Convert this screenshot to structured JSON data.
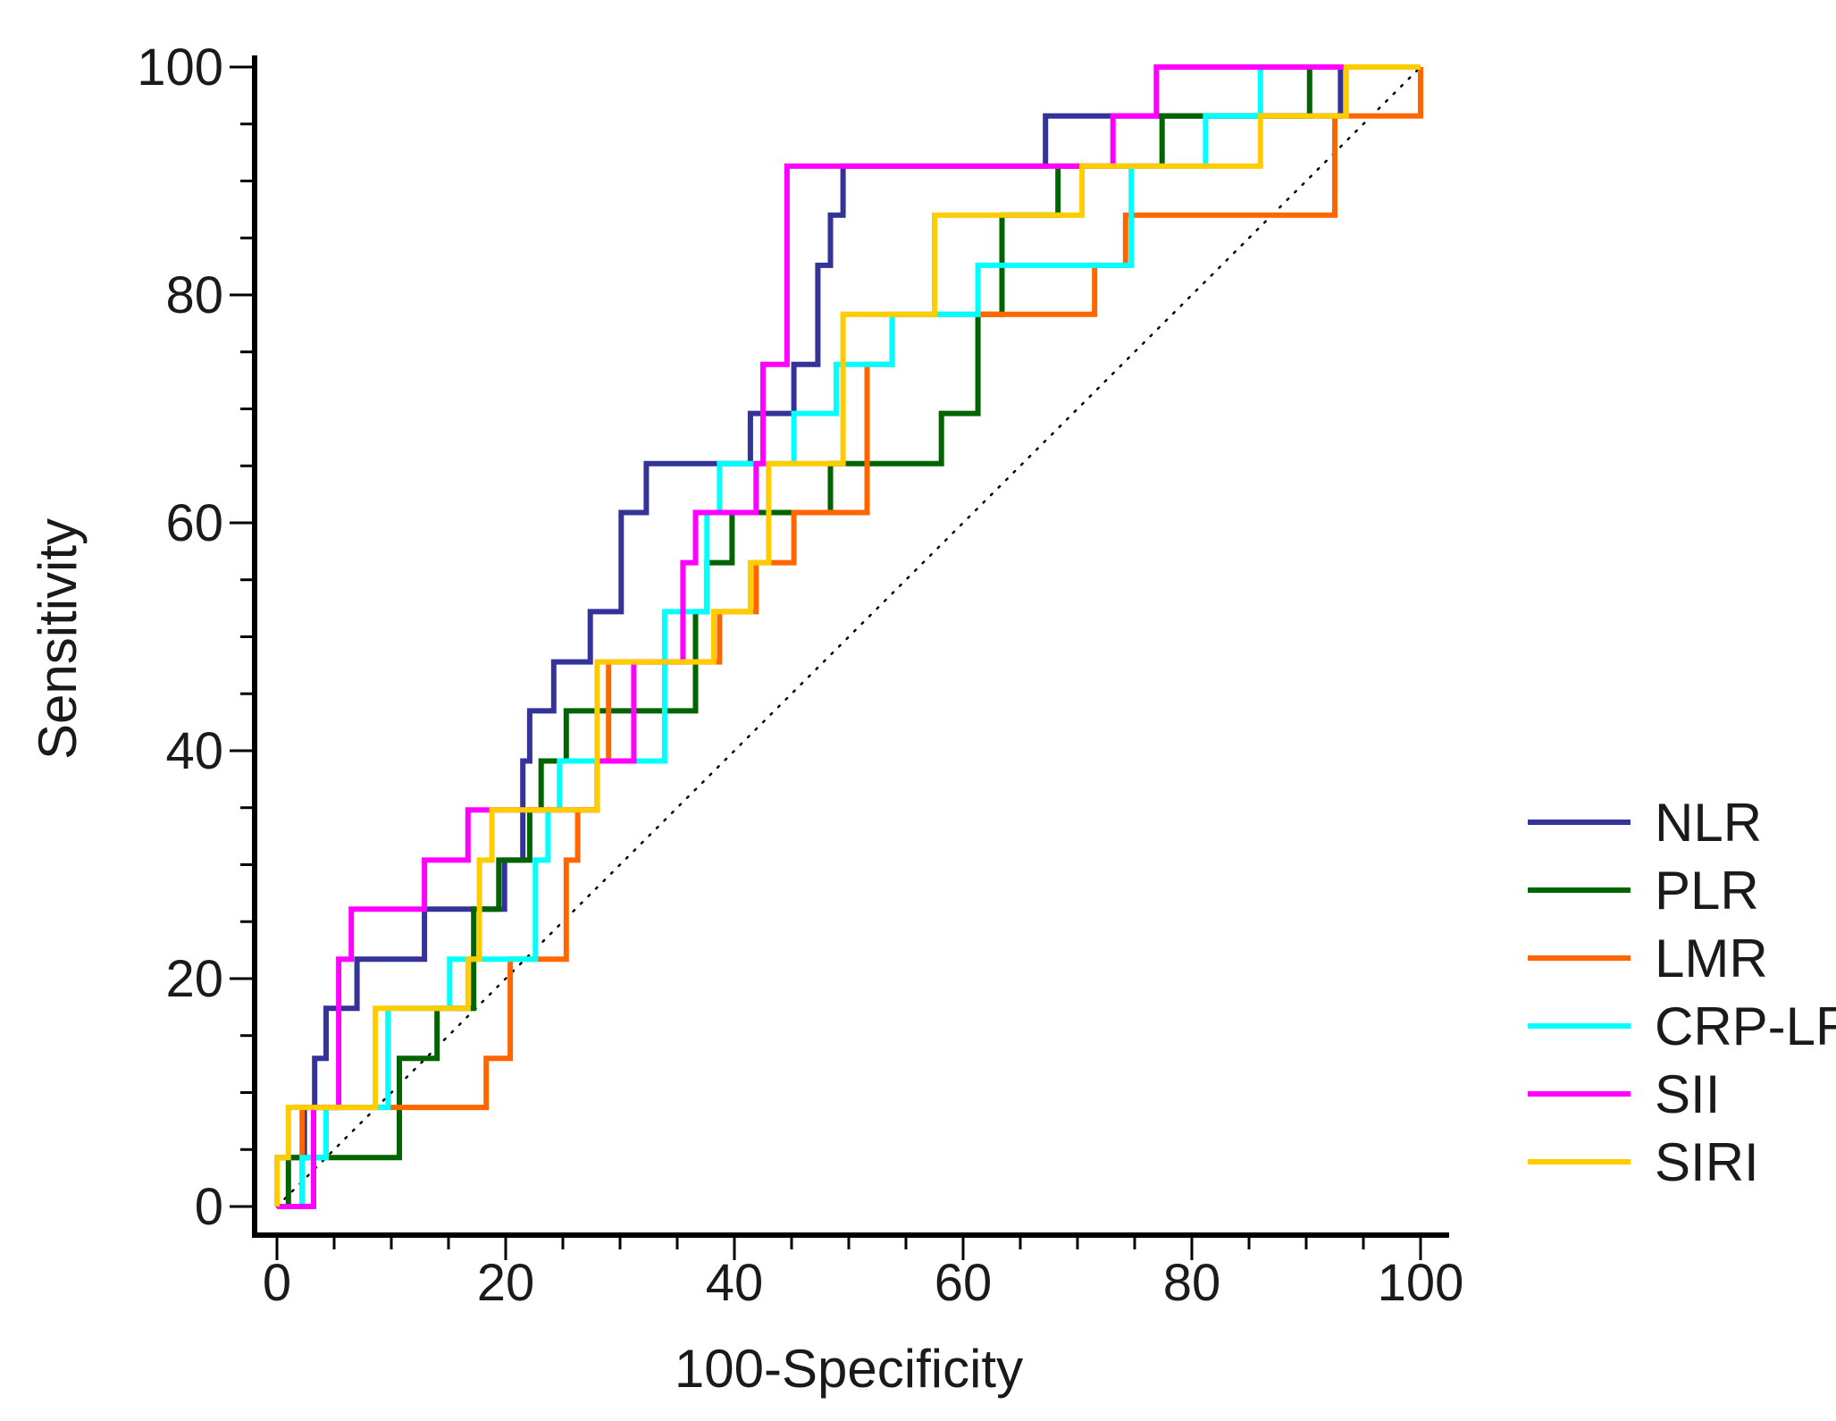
{
  "chart_data": {
    "type": "line",
    "title": "",
    "xlabel": "100-Specificity",
    "ylabel": "Sensitivity",
    "xlim": [
      0,
      100
    ],
    "ylim": [
      0,
      100
    ],
    "x_ticks": [
      0,
      20,
      40,
      60,
      80,
      100
    ],
    "y_ticks": [
      0,
      20,
      40,
      60,
      80,
      100
    ],
    "x_tick_labels": [
      "0",
      "20",
      "40",
      "60",
      "80",
      "100"
    ],
    "y_tick_labels": [
      "0",
      "20",
      "40",
      "60",
      "80",
      "100"
    ],
    "grid": false,
    "legend_position": "right",
    "diagonal_reference": true,
    "series": [
      {
        "name": "NLR",
        "color": "#333399",
        "points": [
          [
            0,
            0
          ],
          [
            0,
            4.3
          ],
          [
            2.4,
            4.3
          ],
          [
            2.4,
            8.7
          ],
          [
            3.3,
            8.7
          ],
          [
            3.3,
            13
          ],
          [
            4.3,
            13
          ],
          [
            4.3,
            17.4
          ],
          [
            7,
            17.4
          ],
          [
            7,
            21.7
          ],
          [
            12.9,
            21.7
          ],
          [
            12.9,
            26.1
          ],
          [
            19.9,
            26.1
          ],
          [
            19.9,
            30.4
          ],
          [
            21.5,
            30.4
          ],
          [
            21.5,
            39.1
          ],
          [
            22.1,
            39.1
          ],
          [
            22.1,
            43.5
          ],
          [
            24.2,
            43.5
          ],
          [
            24.2,
            47.8
          ],
          [
            27.4,
            47.8
          ],
          [
            27.4,
            52.2
          ],
          [
            30.1,
            52.2
          ],
          [
            30.1,
            60.9
          ],
          [
            32.3,
            60.9
          ],
          [
            32.3,
            65.2
          ],
          [
            41.4,
            65.2
          ],
          [
            41.4,
            69.6
          ],
          [
            45.2,
            69.6
          ],
          [
            45.2,
            73.9
          ],
          [
            47.3,
            73.9
          ],
          [
            47.3,
            82.6
          ],
          [
            48.4,
            82.6
          ],
          [
            48.4,
            87
          ],
          [
            49.5,
            87
          ],
          [
            49.5,
            91.3
          ],
          [
            67.2,
            91.3
          ],
          [
            67.2,
            95.7
          ],
          [
            93,
            95.7
          ],
          [
            93,
            100
          ],
          [
            100,
            100
          ]
        ]
      },
      {
        "name": "PLR",
        "color": "#006400",
        "points": [
          [
            0,
            0
          ],
          [
            1,
            0
          ],
          [
            1,
            4.3
          ],
          [
            10.7,
            4.3
          ],
          [
            10.7,
            13
          ],
          [
            14,
            13
          ],
          [
            14,
            17.4
          ],
          [
            17.2,
            17.4
          ],
          [
            17.2,
            26.1
          ],
          [
            19.4,
            26.1
          ],
          [
            19.4,
            30.4
          ],
          [
            22.1,
            30.4
          ],
          [
            22.1,
            34.8
          ],
          [
            23.1,
            34.8
          ],
          [
            23.1,
            39.1
          ],
          [
            25.3,
            39.1
          ],
          [
            25.3,
            43.5
          ],
          [
            36.6,
            43.5
          ],
          [
            36.6,
            52.2
          ],
          [
            37.6,
            52.2
          ],
          [
            37.6,
            56.5
          ],
          [
            39.8,
            56.5
          ],
          [
            39.8,
            60.9
          ],
          [
            48.4,
            60.9
          ],
          [
            48.4,
            65.2
          ],
          [
            58.1,
            65.2
          ],
          [
            58.1,
            69.6
          ],
          [
            61.3,
            69.6
          ],
          [
            61.3,
            78.3
          ],
          [
            63.4,
            78.3
          ],
          [
            63.4,
            87
          ],
          [
            68.3,
            87
          ],
          [
            68.3,
            91.3
          ],
          [
            77.4,
            91.3
          ],
          [
            77.4,
            95.7
          ],
          [
            90.3,
            95.7
          ],
          [
            90.3,
            100
          ],
          [
            100,
            100
          ]
        ]
      },
      {
        "name": "LMR",
        "color": "#FF6600",
        "points": [
          [
            0,
            0
          ],
          [
            2.2,
            0
          ],
          [
            2.2,
            8.7
          ],
          [
            18.3,
            8.7
          ],
          [
            18.3,
            13
          ],
          [
            20.4,
            13
          ],
          [
            20.4,
            21.7
          ],
          [
            25.3,
            21.7
          ],
          [
            25.3,
            30.4
          ],
          [
            26.3,
            30.4
          ],
          [
            26.3,
            34.8
          ],
          [
            28,
            34.8
          ],
          [
            28,
            39.1
          ],
          [
            29,
            39.1
          ],
          [
            29,
            47.8
          ],
          [
            38.7,
            47.8
          ],
          [
            38.7,
            52.2
          ],
          [
            41.9,
            52.2
          ],
          [
            41.9,
            56.5
          ],
          [
            45.2,
            56.5
          ],
          [
            45.2,
            60.9
          ],
          [
            51.6,
            60.9
          ],
          [
            51.6,
            73.9
          ],
          [
            53.8,
            73.9
          ],
          [
            53.8,
            78.3
          ],
          [
            61.3,
            78.3
          ],
          [
            71.5,
            78.3
          ],
          [
            71.5,
            82.6
          ],
          [
            74.2,
            82.6
          ],
          [
            74.2,
            87
          ],
          [
            92.5,
            87
          ],
          [
            92.5,
            95.7
          ],
          [
            100,
            95.7
          ],
          [
            100,
            100
          ]
        ]
      },
      {
        "name": "CRP-LR",
        "color": "#00FFFF",
        "points": [
          [
            0,
            0
          ],
          [
            2.2,
            0
          ],
          [
            2.2,
            4.3
          ],
          [
            4.3,
            4.3
          ],
          [
            4.3,
            8.7
          ],
          [
            9.7,
            8.7
          ],
          [
            9.7,
            17.4
          ],
          [
            15.1,
            17.4
          ],
          [
            15.1,
            21.7
          ],
          [
            22.6,
            21.7
          ],
          [
            22.6,
            30.4
          ],
          [
            23.7,
            30.4
          ],
          [
            23.7,
            34.8
          ],
          [
            24.7,
            34.8
          ],
          [
            24.7,
            39.1
          ],
          [
            33.9,
            39.1
          ],
          [
            33.9,
            52.2
          ],
          [
            37.6,
            52.2
          ],
          [
            37.6,
            60.9
          ],
          [
            38.7,
            60.9
          ],
          [
            38.7,
            65.2
          ],
          [
            45.2,
            65.2
          ],
          [
            45.2,
            69.6
          ],
          [
            48.9,
            69.6
          ],
          [
            48.9,
            73.9
          ],
          [
            53.8,
            73.9
          ],
          [
            53.8,
            78.3
          ],
          [
            61.3,
            78.3
          ],
          [
            61.3,
            82.6
          ],
          [
            74.7,
            82.6
          ],
          [
            74.7,
            91.3
          ],
          [
            81.2,
            91.3
          ],
          [
            81.2,
            95.7
          ],
          [
            86,
            95.7
          ],
          [
            86,
            100
          ],
          [
            100,
            100
          ]
        ]
      },
      {
        "name": "SII",
        "color": "#FF00FF",
        "points": [
          [
            0,
            0
          ],
          [
            3.2,
            0
          ],
          [
            3.2,
            8.7
          ],
          [
            5.4,
            8.7
          ],
          [
            5.4,
            21.7
          ],
          [
            6.5,
            21.7
          ],
          [
            6.5,
            26.1
          ],
          [
            12.9,
            26.1
          ],
          [
            12.9,
            30.4
          ],
          [
            16.7,
            30.4
          ],
          [
            16.7,
            34.8
          ],
          [
            28,
            34.8
          ],
          [
            28,
            39.1
          ],
          [
            31.2,
            39.1
          ],
          [
            31.2,
            47.8
          ],
          [
            35.5,
            47.8
          ],
          [
            35.5,
            56.5
          ],
          [
            36.6,
            56.5
          ],
          [
            36.6,
            60.9
          ],
          [
            41.9,
            60.9
          ],
          [
            41.9,
            65.2
          ],
          [
            42.5,
            65.2
          ],
          [
            42.5,
            73.9
          ],
          [
            44.6,
            73.9
          ],
          [
            44.6,
            91.3
          ],
          [
            73.1,
            91.3
          ],
          [
            73.1,
            95.7
          ],
          [
            76.9,
            95.7
          ],
          [
            76.9,
            100
          ],
          [
            100,
            100
          ]
        ]
      },
      {
        "name": "SIRI",
        "color": "#FFCC00",
        "points": [
          [
            0,
            0
          ],
          [
            0,
            4.3
          ],
          [
            1,
            4.3
          ],
          [
            1,
            8.7
          ],
          [
            8.6,
            8.7
          ],
          [
            8.6,
            17.4
          ],
          [
            16.7,
            17.4
          ],
          [
            16.7,
            21.7
          ],
          [
            17.7,
            21.7
          ],
          [
            17.7,
            30.4
          ],
          [
            18.8,
            30.4
          ],
          [
            18.8,
            34.8
          ],
          [
            28,
            34.8
          ],
          [
            28,
            47.8
          ],
          [
            38.2,
            47.8
          ],
          [
            38.2,
            52.2
          ],
          [
            41.4,
            52.2
          ],
          [
            41.4,
            56.5
          ],
          [
            43,
            56.5
          ],
          [
            43,
            65.2
          ],
          [
            49.5,
            65.2
          ],
          [
            49.5,
            78.3
          ],
          [
            57.5,
            78.3
          ],
          [
            57.5,
            87
          ],
          [
            70.4,
            87
          ],
          [
            70.4,
            91.3
          ],
          [
            86,
            91.3
          ],
          [
            86,
            95.7
          ],
          [
            93.5,
            95.7
          ],
          [
            93.5,
            100
          ],
          [
            100,
            100
          ]
        ]
      }
    ]
  }
}
